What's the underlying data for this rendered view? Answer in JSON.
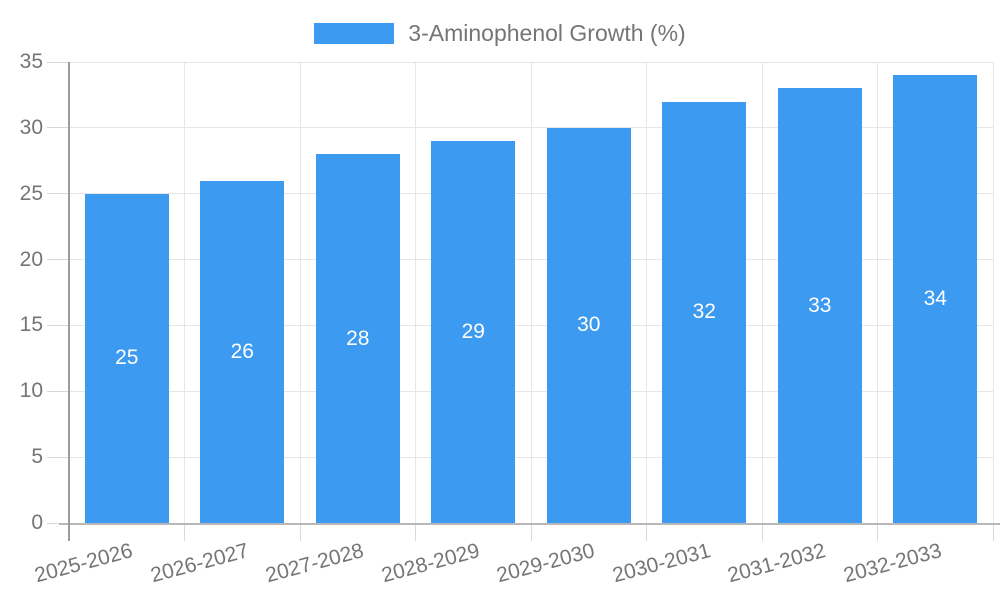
{
  "chart_data": {
    "type": "bar",
    "title": "",
    "legend": {
      "position": "top",
      "label": "3-Aminophenol Growth (%)"
    },
    "categories": [
      "2025-2026",
      "2026-2027",
      "2027-2028",
      "2028-2029",
      "2029-2030",
      "2030-2031",
      "2031-2032",
      "2032-2033"
    ],
    "values": [
      25,
      26,
      28,
      29,
      30,
      32,
      33,
      34
    ],
    "xlabel": "",
    "ylabel": "",
    "ylim": [
      0,
      35
    ],
    "yticks": [
      0,
      5,
      10,
      15,
      20,
      25,
      30,
      35
    ],
    "grid": true,
    "value_labels_position": "inside-center",
    "x_label_rotation_deg": -15,
    "colors": {
      "bar": "#3c9af0",
      "value_label": "#ffffff",
      "axis_text": "#757575",
      "gridline": "#e6e6e6",
      "tick": "#d9d9d9",
      "x_axis_line": "#b8b8b8",
      "y_axis_line": "#9b9b9b",
      "background": "#ffffff"
    }
  }
}
